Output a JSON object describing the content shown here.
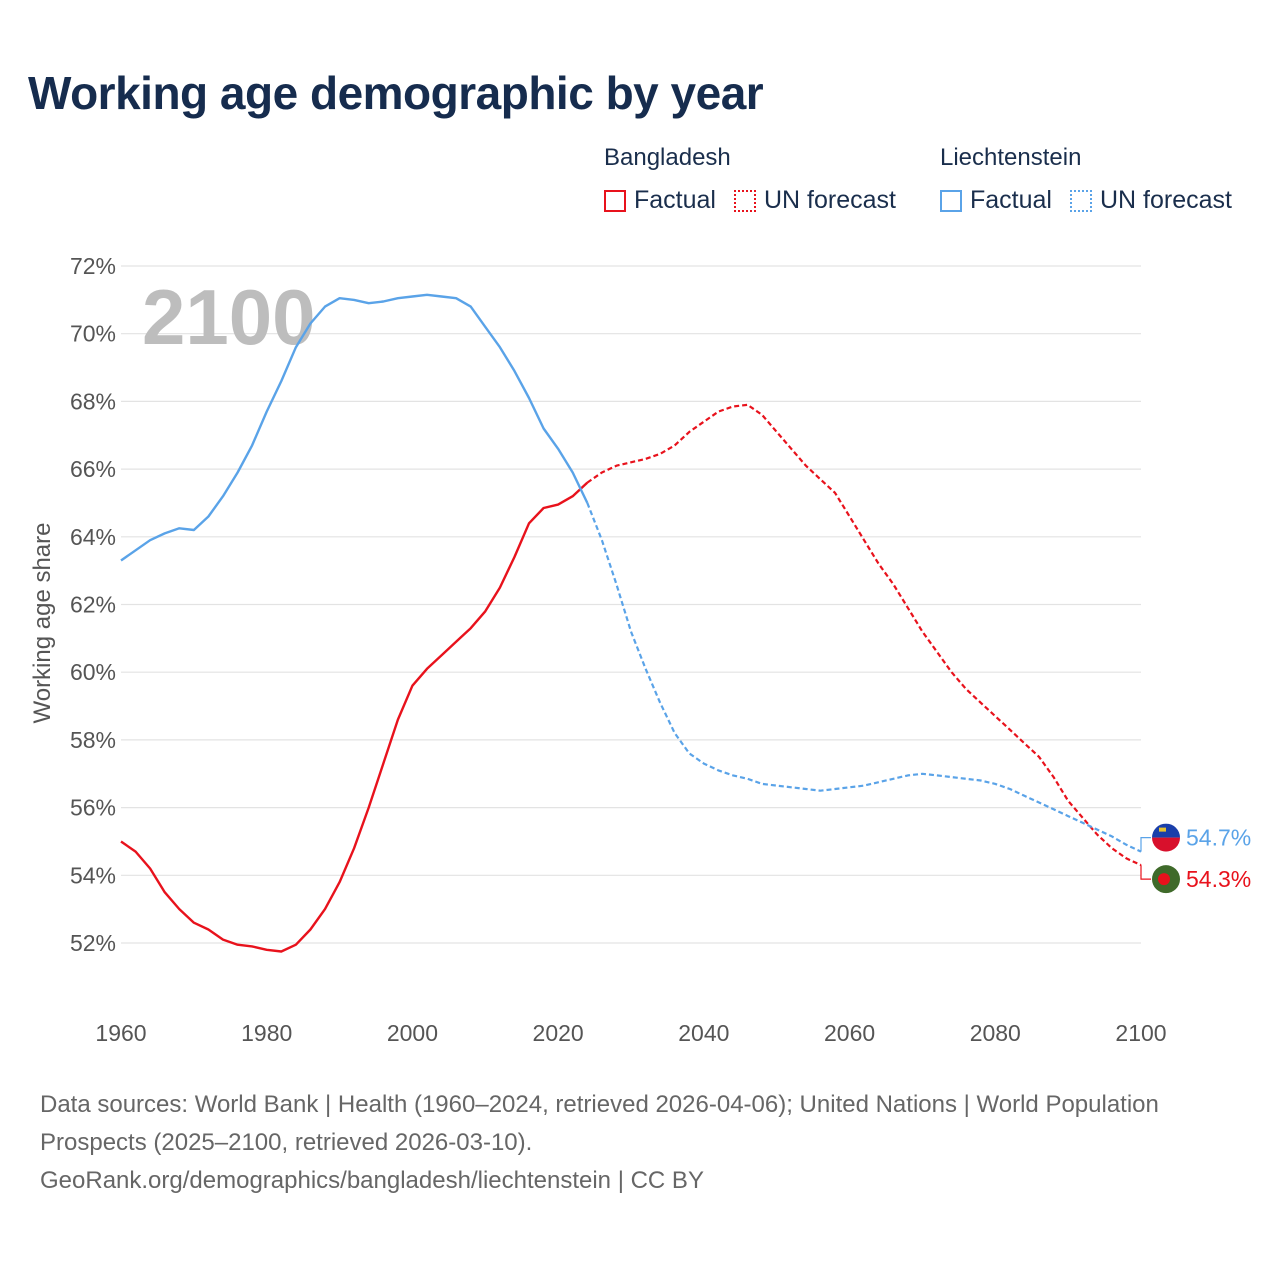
{
  "title": "Working age demographic by year",
  "legend": {
    "groups": [
      {
        "country": "Bangladesh",
        "factual_label": "Factual",
        "forecast_label": "UN forecast",
        "color": "#e8121c"
      },
      {
        "country": "Liechtenstein",
        "factual_label": "Factual",
        "forecast_label": "UN forecast",
        "color": "#5aa3e8"
      }
    ]
  },
  "footer": {
    "sources": "Data sources: World Bank | Health (1960–2024, retrieved 2026-04-06); United Nations | World Population Prospects (2025–2100, retrieved 2026-03-10).",
    "link": "GeoRank.org/demographics/bangladesh/liechtenstein | CC BY"
  },
  "chart_data": {
    "type": "line",
    "title": "Working age demographic by year",
    "current_year_label": "2100",
    "xlabel": "",
    "ylabel": "Working age share",
    "xlim": [
      1960,
      2100
    ],
    "ylim": [
      51,
      72.3
    ],
    "x_ticks": [
      1960,
      1980,
      2000,
      2020,
      2040,
      2060,
      2080,
      2100
    ],
    "x_tick_labels": [
      "1960",
      "1980",
      "2000",
      "2020",
      "2040",
      "2060",
      "2080",
      "2100"
    ],
    "y_ticks": [
      52,
      54,
      56,
      58,
      60,
      62,
      64,
      66,
      68,
      70,
      72
    ],
    "y_tick_labels": [
      "52%",
      "54%",
      "56%",
      "58%",
      "60%",
      "62%",
      "64%",
      "66%",
      "68%",
      "70%",
      "72%"
    ],
    "grid": true,
    "factual_end_year": 2024,
    "series": [
      {
        "name": "Bangladesh",
        "color": "#e8121c",
        "flag_icon": "bangladesh-flag-icon",
        "end_value_label": "54.3%",
        "points": [
          [
            1960,
            55.0
          ],
          [
            1962,
            54.7
          ],
          [
            1964,
            54.2
          ],
          [
            1966,
            53.5
          ],
          [
            1968,
            53.0
          ],
          [
            1970,
            52.6
          ],
          [
            1972,
            52.4
          ],
          [
            1974,
            52.1
          ],
          [
            1976,
            51.95
          ],
          [
            1978,
            51.9
          ],
          [
            1980,
            51.8
          ],
          [
            1982,
            51.75
          ],
          [
            1984,
            51.95
          ],
          [
            1986,
            52.4
          ],
          [
            1988,
            53.0
          ],
          [
            1990,
            53.8
          ],
          [
            1992,
            54.8
          ],
          [
            1994,
            56.0
          ],
          [
            1996,
            57.3
          ],
          [
            1998,
            58.6
          ],
          [
            2000,
            59.6
          ],
          [
            2002,
            60.1
          ],
          [
            2004,
            60.5
          ],
          [
            2006,
            60.9
          ],
          [
            2008,
            61.3
          ],
          [
            2010,
            61.8
          ],
          [
            2012,
            62.5
          ],
          [
            2014,
            63.4
          ],
          [
            2016,
            64.4
          ],
          [
            2018,
            64.85
          ],
          [
            2020,
            64.95
          ],
          [
            2022,
            65.2
          ],
          [
            2024,
            65.6
          ],
          [
            2026,
            65.9
          ],
          [
            2028,
            66.1
          ],
          [
            2030,
            66.2
          ],
          [
            2032,
            66.3
          ],
          [
            2034,
            66.45
          ],
          [
            2036,
            66.7
          ],
          [
            2038,
            67.1
          ],
          [
            2040,
            67.4
          ],
          [
            2042,
            67.7
          ],
          [
            2044,
            67.85
          ],
          [
            2046,
            67.9
          ],
          [
            2048,
            67.6
          ],
          [
            2050,
            67.1
          ],
          [
            2052,
            66.6
          ],
          [
            2054,
            66.1
          ],
          [
            2056,
            65.7
          ],
          [
            2058,
            65.3
          ],
          [
            2060,
            64.6
          ],
          [
            2062,
            63.9
          ],
          [
            2064,
            63.2
          ],
          [
            2066,
            62.6
          ],
          [
            2068,
            61.9
          ],
          [
            2070,
            61.2
          ],
          [
            2072,
            60.6
          ],
          [
            2074,
            60.0
          ],
          [
            2076,
            59.5
          ],
          [
            2078,
            59.1
          ],
          [
            2080,
            58.7
          ],
          [
            2082,
            58.3
          ],
          [
            2084,
            57.9
          ],
          [
            2086,
            57.5
          ],
          [
            2088,
            56.9
          ],
          [
            2090,
            56.2
          ],
          [
            2092,
            55.7
          ],
          [
            2094,
            55.2
          ],
          [
            2096,
            54.8
          ],
          [
            2098,
            54.5
          ],
          [
            2100,
            54.3
          ]
        ]
      },
      {
        "name": "Liechtenstein",
        "color": "#5aa3e8",
        "flag_icon": "liechtenstein-flag-icon",
        "end_value_label": "54.7%",
        "points": [
          [
            1960,
            63.3
          ],
          [
            1962,
            63.6
          ],
          [
            1964,
            63.9
          ],
          [
            1966,
            64.1
          ],
          [
            1968,
            64.25
          ],
          [
            1970,
            64.2
          ],
          [
            1972,
            64.6
          ],
          [
            1974,
            65.2
          ],
          [
            1976,
            65.9
          ],
          [
            1978,
            66.7
          ],
          [
            1980,
            67.7
          ],
          [
            1982,
            68.6
          ],
          [
            1984,
            69.6
          ],
          [
            1986,
            70.3
          ],
          [
            1988,
            70.8
          ],
          [
            1990,
            71.05
          ],
          [
            1992,
            71.0
          ],
          [
            1994,
            70.9
          ],
          [
            1996,
            70.95
          ],
          [
            1998,
            71.05
          ],
          [
            2000,
            71.1
          ],
          [
            2002,
            71.15
          ],
          [
            2004,
            71.1
          ],
          [
            2006,
            71.05
          ],
          [
            2008,
            70.8
          ],
          [
            2010,
            70.2
          ],
          [
            2012,
            69.6
          ],
          [
            2014,
            68.9
          ],
          [
            2016,
            68.1
          ],
          [
            2018,
            67.2
          ],
          [
            2020,
            66.6
          ],
          [
            2022,
            65.9
          ],
          [
            2024,
            65.0
          ],
          [
            2026,
            63.9
          ],
          [
            2028,
            62.6
          ],
          [
            2030,
            61.2
          ],
          [
            2032,
            60.1
          ],
          [
            2034,
            59.1
          ],
          [
            2036,
            58.2
          ],
          [
            2038,
            57.6
          ],
          [
            2040,
            57.3
          ],
          [
            2042,
            57.1
          ],
          [
            2044,
            56.95
          ],
          [
            2046,
            56.85
          ],
          [
            2048,
            56.7
          ],
          [
            2050,
            56.65
          ],
          [
            2052,
            56.6
          ],
          [
            2054,
            56.55
          ],
          [
            2056,
            56.5
          ],
          [
            2058,
            56.55
          ],
          [
            2060,
            56.6
          ],
          [
            2062,
            56.65
          ],
          [
            2064,
            56.75
          ],
          [
            2066,
            56.85
          ],
          [
            2068,
            56.95
          ],
          [
            2070,
            57.0
          ],
          [
            2072,
            56.95
          ],
          [
            2074,
            56.9
          ],
          [
            2076,
            56.85
          ],
          [
            2078,
            56.8
          ],
          [
            2080,
            56.7
          ],
          [
            2082,
            56.55
          ],
          [
            2084,
            56.35
          ],
          [
            2086,
            56.15
          ],
          [
            2088,
            55.95
          ],
          [
            2090,
            55.75
          ],
          [
            2092,
            55.55
          ],
          [
            2094,
            55.35
          ],
          [
            2096,
            55.15
          ],
          [
            2098,
            54.9
          ],
          [
            2100,
            54.7
          ]
        ]
      }
    ]
  }
}
